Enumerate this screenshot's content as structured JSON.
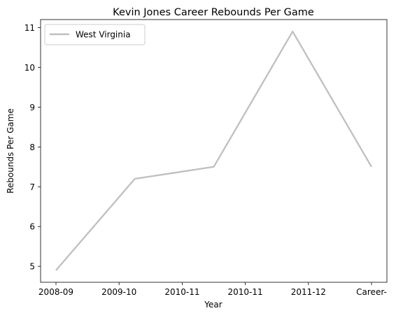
{
  "chart_data": {
    "type": "line",
    "title": "Kevin Jones  Career Rebounds Per Game",
    "xlabel": "Year",
    "ylabel": "Rebounds Per Game",
    "categories": [
      "2008-09",
      "2009-10",
      "2010-11",
      "2010-11",
      "2011-12",
      "Career-"
    ],
    "series": [
      {
        "name": "West Virginia",
        "color": "#bfbfbf",
        "values": [
          4.9,
          7.2,
          7.5,
          7.5,
          10.9,
          7.5
        ],
        "x_positions": [
          0,
          1,
          2,
          2,
          3,
          4
        ]
      }
    ],
    "ylim": [
      4.6,
      11.2
    ],
    "yticks": [
      5,
      6,
      7,
      8,
      9,
      10,
      11
    ],
    "grid": false,
    "legend_position": "top-left"
  }
}
